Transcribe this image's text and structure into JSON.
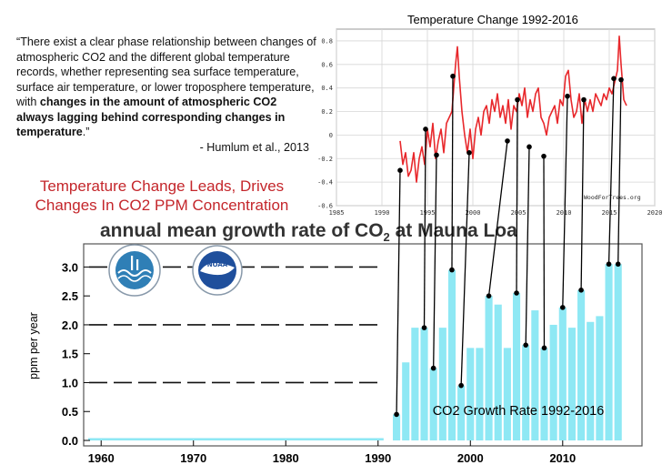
{
  "quote": {
    "open_quote": "“",
    "part1": "There exist a clear phase relationship between changes of atmospheric CO2 and the different global temperature records, whether representing sea surface temperature, surface air temperature, or lower troposphere temperature, with ",
    "bold": "changes in the amount of atmospheric CO2 always lagging behind corresponding changes in temperature",
    "part2": ".",
    "close_quote": "”",
    "attribution": "- Humlum et al., 2013"
  },
  "headline": {
    "line1": "Temperature Change Leads, Drives",
    "line2": "Changes In CO2 PPM Concentration"
  },
  "colors": {
    "headline": "#c4262b",
    "temp_line": "#e8282c",
    "bar_fill": "#8ee8f4",
    "connector": "#000000"
  },
  "icons": [
    "noaa-esrl-logo-icon",
    "noaa-logo-icon"
  ],
  "chart_data": [
    {
      "type": "line",
      "title": "Temperature Change 1992-2016",
      "watermark": "WoodForTrees.org",
      "xlim": [
        1985,
        2020
      ],
      "ylim": [
        -0.6,
        0.9
      ],
      "x_ticks": [
        1985,
        1990,
        1995,
        2000,
        2005,
        2010,
        2015,
        2020
      ],
      "y_ticks": [
        -0.6,
        -0.4,
        -0.2,
        0,
        0.2,
        0.4,
        0.6,
        0.8
      ],
      "grid": true,
      "series": [
        {
          "x": [
            1992.0,
            1992.3,
            1992.6,
            1992.9,
            1993.2,
            1993.5,
            1993.8,
            1994.1,
            1994.4,
            1994.7,
            1995.0,
            1995.3,
            1995.6,
            1995.9,
            1996.2,
            1996.5,
            1996.8,
            1997.1,
            1997.4,
            1997.7,
            1997.9,
            1998.1,
            1998.3,
            1998.5,
            1998.8,
            1999.1,
            1999.4,
            1999.7,
            2000.0,
            2000.3,
            2000.6,
            2000.9,
            2001.2,
            2001.5,
            2001.8,
            2002.1,
            2002.4,
            2002.7,
            2003.0,
            2003.3,
            2003.6,
            2003.9,
            2004.2,
            2004.5,
            2004.8,
            2005.1,
            2005.4,
            2005.7,
            2006.0,
            2006.3,
            2006.6,
            2006.9,
            2007.2,
            2007.5,
            2007.8,
            2008.1,
            2008.4,
            2008.7,
            2009.0,
            2009.3,
            2009.6,
            2009.9,
            2010.2,
            2010.5,
            2010.8,
            2011.1,
            2011.4,
            2011.7,
            2012.0,
            2012.3,
            2012.6,
            2012.9,
            2013.2,
            2013.5,
            2013.8,
            2014.1,
            2014.4,
            2014.7,
            2015.0,
            2015.3,
            2015.6,
            2015.9,
            2016.1,
            2016.3,
            2016.6,
            2016.9
          ],
          "y": [
            -0.05,
            -0.25,
            -0.15,
            -0.35,
            -0.3,
            -0.15,
            -0.4,
            -0.2,
            -0.1,
            -0.25,
            0.05,
            -0.1,
            0.1,
            -0.2,
            -0.05,
            0.05,
            -0.15,
            0.1,
            0.15,
            0.2,
            0.4,
            0.6,
            0.75,
            0.5,
            0.2,
            0.0,
            -0.15,
            0.05,
            -0.2,
            0.05,
            0.15,
            0.0,
            0.2,
            0.25,
            0.1,
            0.3,
            0.2,
            0.35,
            0.15,
            0.25,
            0.1,
            0.3,
            0.05,
            0.25,
            0.2,
            0.35,
            0.25,
            0.4,
            0.15,
            0.3,
            0.2,
            0.35,
            0.4,
            0.15,
            0.1,
            0.0,
            0.15,
            0.2,
            0.25,
            0.1,
            0.3,
            0.25,
            0.5,
            0.55,
            0.3,
            0.15,
            0.2,
            0.35,
            0.1,
            0.3,
            0.2,
            0.3,
            0.2,
            0.35,
            0.3,
            0.25,
            0.35,
            0.3,
            0.4,
            0.35,
            0.45,
            0.55,
            0.84,
            0.6,
            0.3,
            0.25
          ]
        }
      ]
    },
    {
      "type": "bar",
      "title": "annual mean growth rate of CO",
      "title_subscript": "2",
      "title_suffix": " at Mauna Loa",
      "annotation": "CO2 Growth Rate 1992-2016",
      "ylabel": "ppm per year",
      "xlim": [
        1958.5,
        2018
      ],
      "ylim": [
        0,
        3.4
      ],
      "x_ticks": [
        1960,
        1970,
        1980,
        1990,
        2000,
        2010
      ],
      "y_ticks": [
        0.0,
        0.5,
        1.0,
        1.5,
        2.0,
        2.5,
        3.0
      ],
      "dashed_reference_lines": [
        1.0,
        2.0,
        3.0
      ],
      "years": [
        1992,
        1993,
        1994,
        1995,
        1996,
        1997,
        1998,
        1999,
        2000,
        2001,
        2002,
        2003,
        2004,
        2005,
        2006,
        2007,
        2008,
        2009,
        2010,
        2011,
        2012,
        2013,
        2014,
        2015,
        2016
      ],
      "values": [
        0.45,
        1.35,
        1.95,
        1.95,
        1.25,
        1.95,
        2.95,
        0.95,
        1.6,
        1.6,
        2.5,
        2.35,
        1.6,
        2.55,
        1.65,
        2.25,
        1.6,
        2.0,
        2.3,
        1.95,
        2.6,
        2.05,
        2.15,
        3.05,
        3.05
      ]
    }
  ],
  "linked_pairs": [
    {
      "temp_x": 1992.0,
      "temp_y": -0.3,
      "co2_year": 1992
    },
    {
      "temp_x": 1994.8,
      "temp_y": 0.05,
      "co2_year": 1995
    },
    {
      "temp_x": 1996.0,
      "temp_y": -0.17,
      "co2_year": 1996
    },
    {
      "temp_x": 1997.8,
      "temp_y": 0.5,
      "co2_year": 1998
    },
    {
      "temp_x": 1999.6,
      "temp_y": -0.15,
      "co2_year": 1999
    },
    {
      "temp_x": 2003.8,
      "temp_y": -0.05,
      "co2_year": 2002
    },
    {
      "temp_x": 2004.9,
      "temp_y": 0.3,
      "co2_year": 2005
    },
    {
      "temp_x": 2006.2,
      "temp_y": -0.1,
      "co2_year": 2006
    },
    {
      "temp_x": 2007.8,
      "temp_y": -0.18,
      "co2_year": 2008
    },
    {
      "temp_x": 2010.4,
      "temp_y": 0.33,
      "co2_year": 2010
    },
    {
      "temp_x": 2012.2,
      "temp_y": 0.3,
      "co2_year": 2012
    },
    {
      "temp_x": 2015.5,
      "temp_y": 0.48,
      "co2_year": 2015
    },
    {
      "temp_x": 2016.3,
      "temp_y": 0.47,
      "co2_year": 2016
    }
  ]
}
